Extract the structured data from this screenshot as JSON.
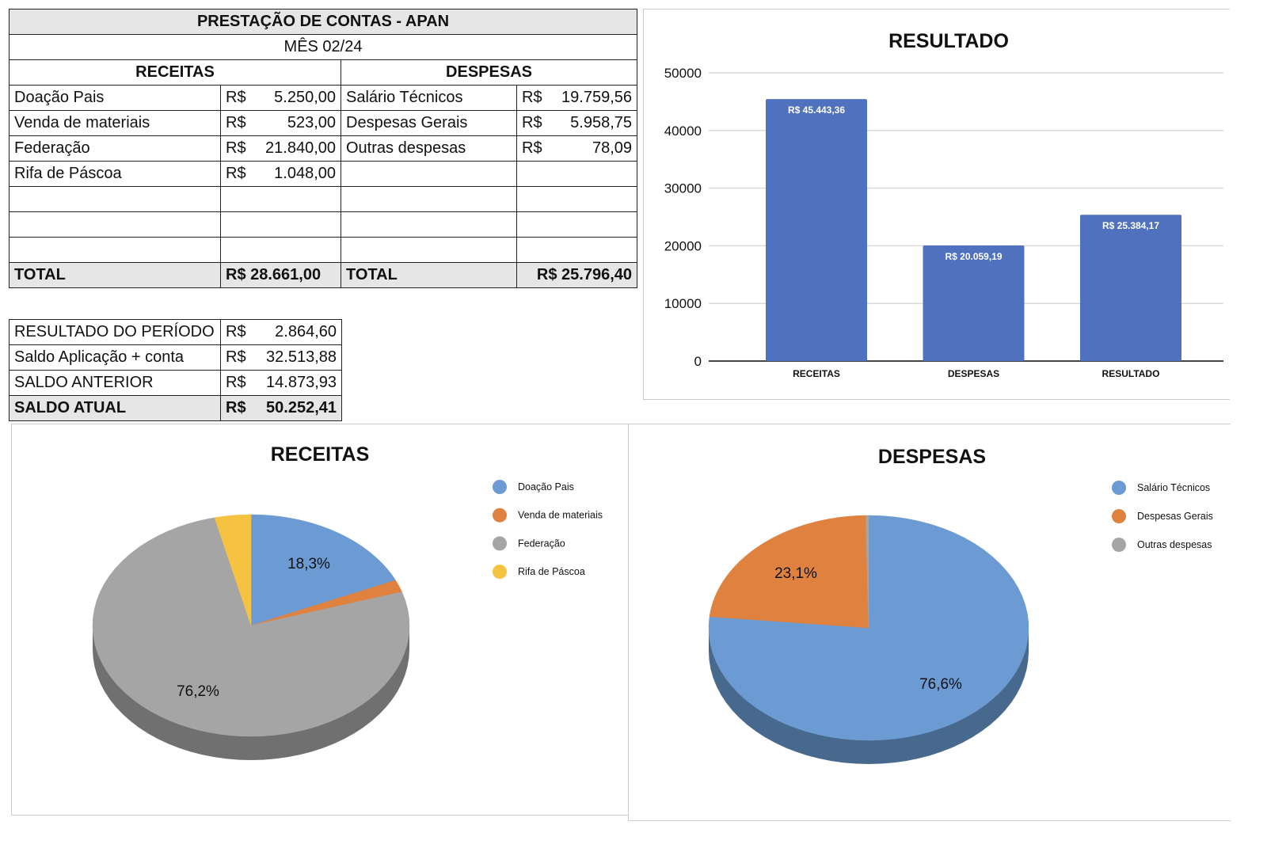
{
  "table": {
    "title": "PRESTAÇÃO DE CONTAS - APAN",
    "month": "MÊS 02/24",
    "receitas_header": "RECEITAS",
    "despesas_header": "DESPESAS",
    "currency": "R$",
    "rows": [
      {
        "r_label": "Doação Pais",
        "r_value": "5.250,00",
        "d_label": "Salário Técnicos",
        "d_value": "19.759,56"
      },
      {
        "r_label": "Venda de materiais",
        "r_value": "523,00",
        "d_label": "Despesas Gerais",
        "d_value": "5.958,75"
      },
      {
        "r_label": "Federação",
        "r_value": "21.840,00",
        "d_label": "Outras despesas",
        "d_value": "78,09"
      },
      {
        "r_label": "Rifa de Páscoa",
        "r_value": "1.048,00",
        "d_label": "",
        "d_value": ""
      }
    ],
    "total_label": "TOTAL",
    "total_receitas": "R$ 28.661,00",
    "total_despesas": "R$ 25.796,40"
  },
  "summary": [
    {
      "label": "RESULTADO DO PERÍODO",
      "value": "2.864,60"
    },
    {
      "label": "Saldo Aplicação + conta",
      "value": "32.513,88"
    },
    {
      "label": "SALDO ANTERIOR",
      "value": "14.873,93"
    },
    {
      "label": "SALDO ATUAL",
      "value": "50.252,41"
    }
  ],
  "chart_data": [
    {
      "type": "bar",
      "title": "RESULTADO",
      "categories": [
        "RECEITAS",
        "DESPESAS",
        "RESULTADO"
      ],
      "values": [
        45443.36,
        20059.19,
        25384.17
      ],
      "data_labels": [
        "R$ 45.443,36",
        "R$ 20.059,19",
        "R$ 25.384,17"
      ],
      "ylim": [
        0,
        50000
      ],
      "yticks": [
        "0",
        "10000",
        "20000",
        "30000",
        "40000",
        "50000"
      ],
      "grid": true,
      "color": "#5072be"
    },
    {
      "type": "pie",
      "title": "RECEITAS",
      "labels": [
        "Doação Pais",
        "Venda de materiais",
        "Federação",
        "Rifa de Páscoa"
      ],
      "values": [
        18.3,
        1.8,
        76.2,
        3.7
      ],
      "data_labels": [
        "18,3%",
        "",
        "76,2%",
        ""
      ],
      "colors": [
        "#6b9bd2",
        "#e0823f",
        "#a5a5a5",
        "#f5c242"
      ],
      "legend": "right"
    },
    {
      "type": "pie",
      "title": "DESPESAS",
      "labels": [
        "Salário Técnicos",
        "Despesas Gerais",
        "Outras despesas"
      ],
      "values": [
        76.6,
        23.1,
        0.3
      ],
      "data_labels": [
        "76,6%",
        "23,1%",
        ""
      ],
      "colors": [
        "#6b9bd2",
        "#e0823f",
        "#a5a5a5"
      ],
      "legend": "right"
    }
  ]
}
